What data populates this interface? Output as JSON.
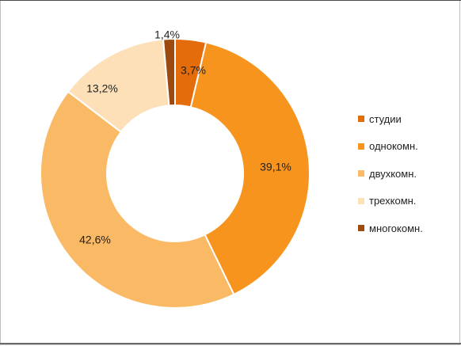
{
  "chart_data": {
    "type": "pie",
    "variant": "donut",
    "categories": [
      "студии",
      "однокомн.",
      "двухкомн.",
      "трехкомн.",
      "многокомн."
    ],
    "values": [
      3.7,
      39.1,
      42.6,
      13.2,
      1.4
    ],
    "data_labels": [
      "3,7%",
      "39,1%",
      "42,6%",
      "13,2%",
      "1,4%"
    ],
    "colors": [
      "#e46c0a",
      "#f7941d",
      "#fab964",
      "#fde0b8",
      "#9c4a10"
    ],
    "legend": {
      "position": "right",
      "entries": [
        "студии",
        "однокомн.",
        "двухкомн.",
        "трехкомн.",
        "многокомн."
      ]
    },
    "title": "",
    "start_angle_deg": 0,
    "direction": "clockwise"
  }
}
